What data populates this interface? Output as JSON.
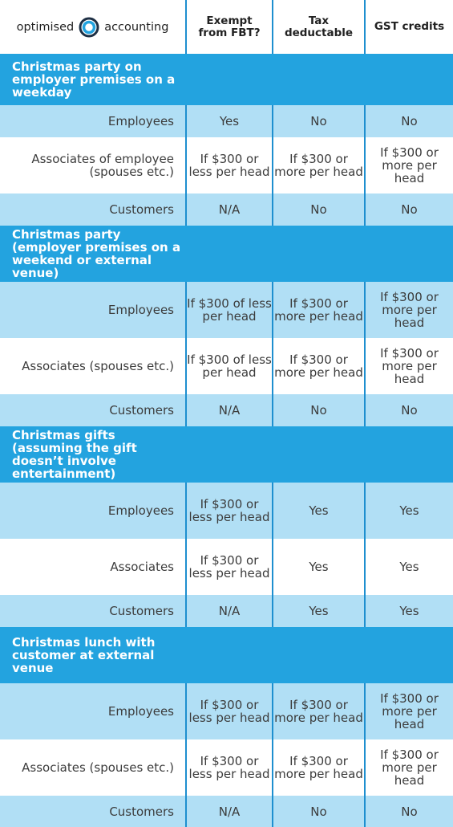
{
  "brand": {
    "word1": "optimised",
    "word2": "accounting",
    "ring_color": "#23a3df",
    "ring_dark": "#1d2f44"
  },
  "columns": [
    "Exempt\nfrom FBT?",
    "Tax\ndeductable",
    "GST credits"
  ],
  "sections": [
    {
      "title": "Christmas party on employer premises on a weekday",
      "rows": [
        {
          "label": "Employees",
          "values": [
            "Yes",
            "No",
            "No"
          ]
        },
        {
          "label": "Associates of employee (spouses etc.)",
          "values": [
            "If $300 or less per head",
            "If $300 or more per head",
            "If $300 or more per head"
          ]
        },
        {
          "label": "Customers",
          "values": [
            "N/A",
            "No",
            "No"
          ]
        }
      ]
    },
    {
      "title": "Christmas party (employer premises on a weekend or external venue)",
      "rows": [
        {
          "label": "Employees",
          "values": [
            "If $300 of less per head",
            "If $300 or more per head",
            "If $300 or more per head"
          ]
        },
        {
          "label": "Associates (spouses etc.)",
          "values": [
            "If $300 of less per head",
            "If $300 or more per head",
            "If $300 or more per head"
          ]
        },
        {
          "label": "Customers",
          "values": [
            "N/A",
            "No",
            "No"
          ]
        }
      ]
    },
    {
      "title": "Christmas gifts (assuming the gift doesn’t involve entertainment)",
      "rows": [
        {
          "label": "Employees",
          "values": [
            "If $300 or less per head",
            "Yes",
            "Yes"
          ]
        },
        {
          "label": "Associates",
          "values": [
            "If $300 or less per head",
            "Yes",
            "Yes"
          ]
        },
        {
          "label": "Customers",
          "values": [
            "N/A",
            "Yes",
            "Yes"
          ]
        }
      ]
    },
    {
      "title": "Christmas lunch with customer at external venue",
      "rows": [
        {
          "label": "Employees",
          "values": [
            "If $300 or less per head",
            "If $300 or more per head",
            "If $300 or more per head"
          ]
        },
        {
          "label": "Associates (spouses etc.)",
          "values": [
            "If $300 or less per head",
            "If $300 or more per head",
            "If $300 or more per head"
          ]
        },
        {
          "label": "Customers",
          "values": [
            "N/A",
            "No",
            "No"
          ]
        }
      ]
    }
  ]
}
